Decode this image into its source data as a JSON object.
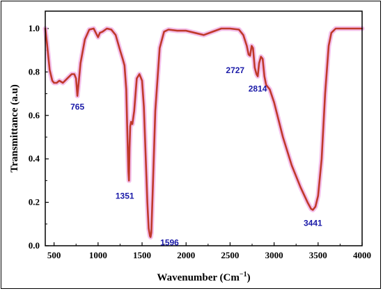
{
  "chart_data": {
    "type": "line",
    "title": "",
    "xlabel": "Wavenumber (Cm",
    "xlabel_sup": "−1",
    "xlabel_close": ")",
    "ylabel": "Transmittance (a.u)",
    "xlim": [
      400,
      4000
    ],
    "ylim": [
      0.0,
      1.08
    ],
    "x_ticks": [
      500,
      1000,
      1500,
      2000,
      2500,
      3000,
      3500,
      4000
    ],
    "x_tick_labels": [
      "500",
      "1000",
      "1500",
      "2000",
      "2500",
      "3000",
      "3500",
      "4000"
    ],
    "y_ticks": [
      0.0,
      0.2,
      0.4,
      0.6,
      0.8,
      1.0
    ],
    "y_tick_labels": [
      "0.0",
      "0.2",
      "0.4",
      "0.6",
      "0.8",
      "1.0"
    ],
    "grid": false,
    "legend": "none",
    "colors": {
      "line": "#c0392b",
      "halo": "#f2b6e8",
      "peak_label": "#1a1aa8"
    },
    "series": [
      {
        "x": [
          400,
          420,
          450,
          480,
          500,
          530,
          560,
          600,
          650,
          700,
          730,
          750,
          765,
          780,
          800,
          850,
          900,
          950,
          1000,
          1020,
          1050,
          1100,
          1150,
          1200,
          1250,
          1280,
          1300,
          1320,
          1335,
          1345,
          1351,
          1357,
          1365,
          1375,
          1390,
          1410,
          1440,
          1470,
          1500,
          1520,
          1540,
          1560,
          1575,
          1590,
          1596,
          1605,
          1620,
          1650,
          1700,
          1750,
          1800,
          1900,
          2000,
          2100,
          2200,
          2300,
          2400,
          2500,
          2600,
          2650,
          2690,
          2710,
          2727,
          2745,
          2760,
          2780,
          2800,
          2814,
          2830,
          2850,
          2870,
          2890,
          2910,
          2950,
          3000,
          3100,
          3200,
          3300,
          3380,
          3420,
          3441,
          3470,
          3500,
          3540,
          3580,
          3620,
          3650,
          3700,
          3800,
          3900,
          4000
        ],
        "y": [
          1.0,
          0.93,
          0.81,
          0.76,
          0.75,
          0.75,
          0.76,
          0.75,
          0.77,
          0.79,
          0.79,
          0.77,
          0.69,
          0.75,
          0.84,
          0.95,
          0.995,
          1.0,
          0.96,
          0.98,
          0.985,
          1.0,
          0.995,
          0.97,
          0.9,
          0.86,
          0.83,
          0.72,
          0.48,
          0.34,
          0.3,
          0.45,
          0.55,
          0.57,
          0.56,
          0.62,
          0.77,
          0.79,
          0.76,
          0.64,
          0.42,
          0.2,
          0.08,
          0.045,
          0.04,
          0.06,
          0.24,
          0.62,
          0.91,
          0.985,
          0.995,
          0.99,
          0.99,
          0.98,
          0.97,
          0.985,
          1.0,
          1.0,
          0.995,
          0.97,
          0.92,
          0.88,
          0.875,
          0.92,
          0.91,
          0.82,
          0.79,
          0.78,
          0.84,
          0.87,
          0.86,
          0.78,
          0.74,
          0.72,
          0.66,
          0.5,
          0.37,
          0.27,
          0.2,
          0.17,
          0.165,
          0.18,
          0.23,
          0.4,
          0.7,
          0.92,
          0.98,
          1.0,
          1.0,
          1.0,
          1.0
        ]
      }
    ],
    "annotations": [
      {
        "text": "765",
        "x": 765,
        "y": 0.69
      },
      {
        "text": "1351",
        "x": 1351,
        "y": 0.3
      },
      {
        "text": "1596",
        "x": 1596,
        "y": 0.04
      },
      {
        "text": "2727",
        "x": 2727,
        "y": 0.875
      },
      {
        "text": "2814",
        "x": 2814,
        "y": 0.78
      },
      {
        "text": "3441",
        "x": 3441,
        "y": 0.165
      }
    ]
  }
}
